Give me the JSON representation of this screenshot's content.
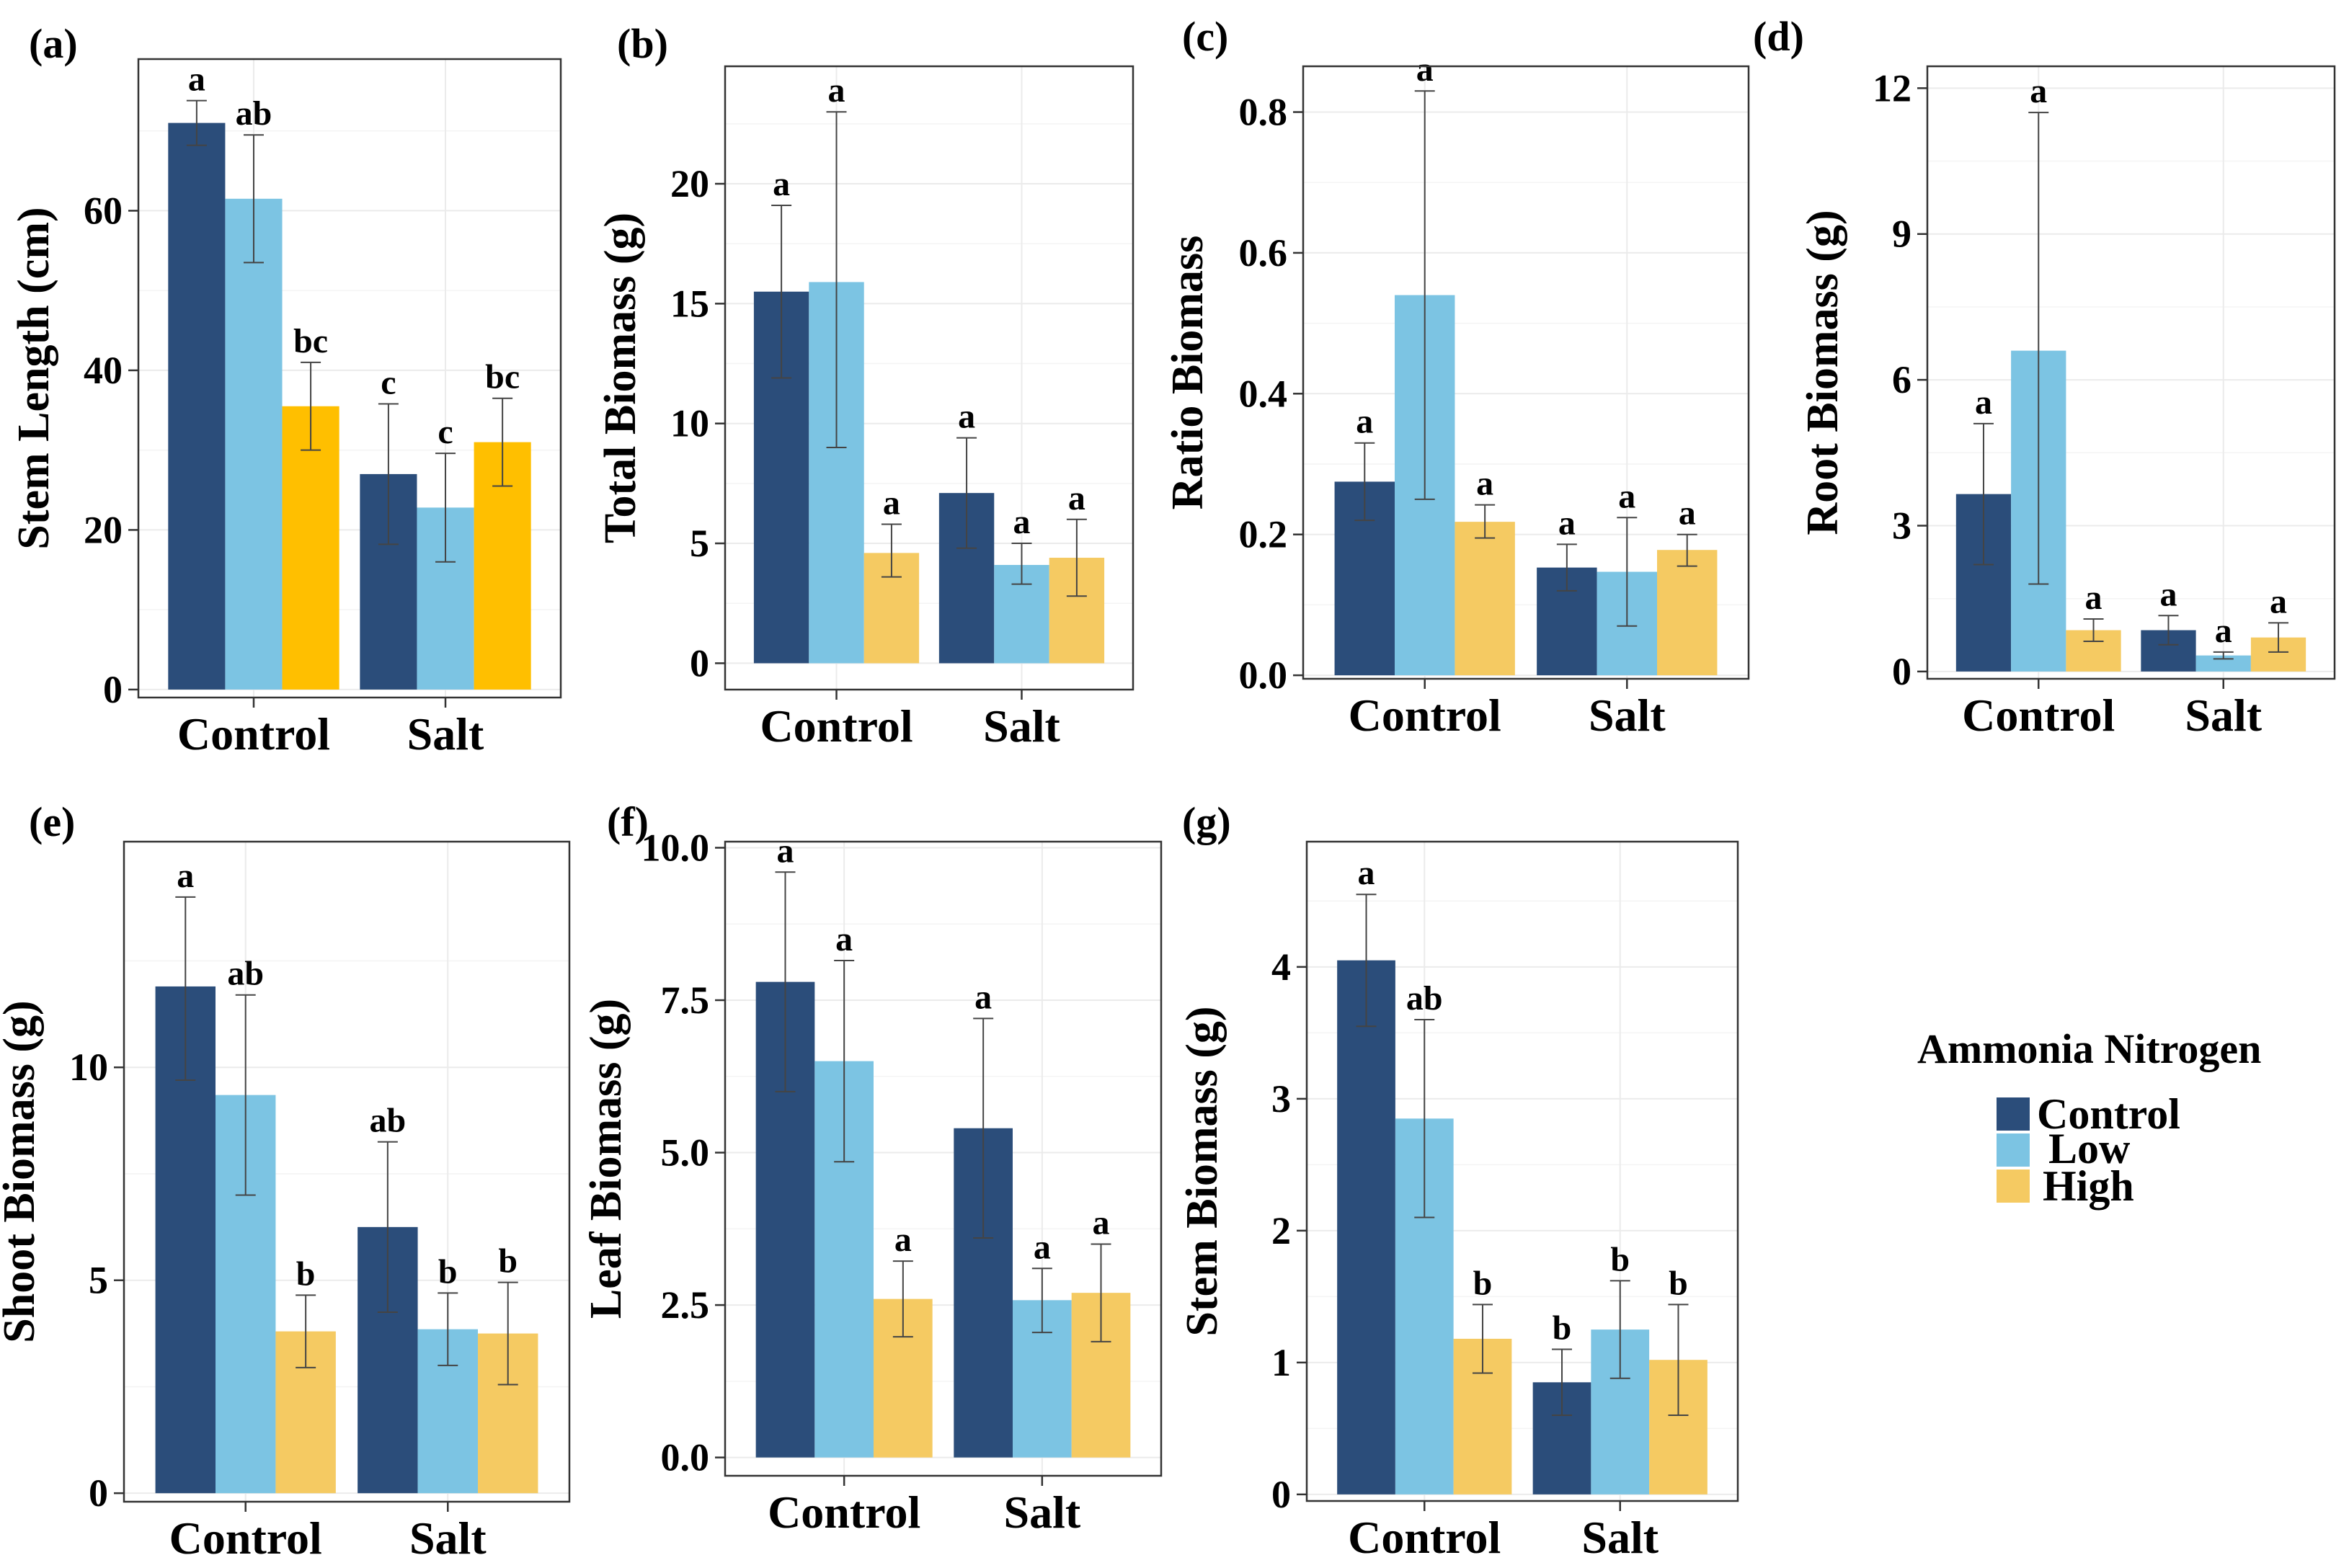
{
  "chart_data": [
    {
      "id": "a",
      "type": "bar",
      "panel_label": "(a)",
      "title": "",
      "ylabel": "Stem Length (cm)",
      "xlabel": "",
      "ylim": [
        -1,
        79
      ],
      "yticks": [
        0,
        20,
        40,
        60
      ],
      "categories": [
        "Control",
        "Salt"
      ],
      "series": [
        {
          "name": "Control",
          "values": [
            71,
            27
          ],
          "err_low": [
            68.2,
            18.2
          ],
          "err_high": [
            73.8,
            35.8
          ],
          "letters": [
            "a",
            "c"
          ]
        },
        {
          "name": "Low",
          "values": [
            61.5,
            22.8
          ],
          "err_low": [
            53.5,
            16
          ],
          "err_high": [
            69.5,
            29.6
          ],
          "letters": [
            "ab",
            "c"
          ]
        },
        {
          "name": "High",
          "values": [
            35.5,
            31
          ],
          "err_low": [
            30,
            25.5
          ],
          "err_high": [
            41,
            36.5
          ],
          "letters": [
            "bc",
            "bc"
          ]
        }
      ]
    },
    {
      "id": "b",
      "type": "bar",
      "panel_label": "(b)",
      "title": "",
      "ylabel": "Total Biomass (g)",
      "xlabel": "",
      "ylim": [
        -1.1,
        24.9
      ],
      "yticks": [
        0,
        5,
        10,
        15,
        20
      ],
      "categories": [
        "Control",
        "Salt"
      ],
      "series": [
        {
          "name": "Control",
          "values": [
            15.5,
            7.1
          ],
          "err_low": [
            11.9,
            4.8
          ],
          "err_high": [
            19.1,
            9.4
          ],
          "letters": [
            "a",
            "a"
          ]
        },
        {
          "name": "Low",
          "values": [
            15.9,
            4.1
          ],
          "err_low": [
            9.0,
            3.3
          ],
          "err_high": [
            23.0,
            5.0
          ],
          "letters": [
            "a",
            "a"
          ]
        },
        {
          "name": "High",
          "values": [
            4.6,
            4.4
          ],
          "err_low": [
            3.6,
            2.8
          ],
          "err_high": [
            5.8,
            6.0
          ],
          "letters": [
            "a",
            "a"
          ]
        }
      ]
    },
    {
      "id": "c",
      "type": "bar",
      "panel_label": "(c)",
      "title": "",
      "ylabel": "Ratio Biomass",
      "xlabel": "",
      "ylim": [
        -0.005,
        0.865
      ],
      "yticks": [
        0.0,
        0.2,
        0.4,
        0.6,
        0.8
      ],
      "ytick_labels": [
        "0.0",
        "0.2",
        "0.4",
        "0.6",
        "0.8"
      ],
      "categories": [
        "Control",
        "Salt"
      ],
      "series": [
        {
          "name": "Control",
          "values": [
            0.275,
            0.153
          ],
          "err_low": [
            0.22,
            0.12
          ],
          "err_high": [
            0.33,
            0.186
          ],
          "letters": [
            "a",
            "a"
          ]
        },
        {
          "name": "Low",
          "values": [
            0.54,
            0.147
          ],
          "err_low": [
            0.25,
            0.07
          ],
          "err_high": [
            0.83,
            0.224
          ],
          "letters": [
            "a",
            "a"
          ]
        },
        {
          "name": "High",
          "values": [
            0.218,
            0.178
          ],
          "err_low": [
            0.195,
            0.155
          ],
          "err_high": [
            0.242,
            0.2
          ],
          "letters": [
            "a",
            "a"
          ]
        }
      ]
    },
    {
      "id": "d",
      "type": "bar",
      "panel_label": "(d)",
      "title": "",
      "ylabel": "Root Biomass (g)",
      "xlabel": "",
      "ylim": [
        -0.15,
        12.45
      ],
      "yticks": [
        0,
        3,
        6,
        9,
        12
      ],
      "categories": [
        "Control",
        "Salt"
      ],
      "series": [
        {
          "name": "Control",
          "values": [
            3.65,
            0.85
          ],
          "err_low": [
            2.2,
            0.55
          ],
          "err_high": [
            5.1,
            1.15
          ],
          "letters": [
            "a",
            "a"
          ]
        },
        {
          "name": "Low",
          "values": [
            6.6,
            0.33
          ],
          "err_low": [
            1.8,
            0.26
          ],
          "err_high": [
            11.5,
            0.4
          ],
          "letters": [
            "a",
            "a"
          ]
        },
        {
          "name": "High",
          "values": [
            0.85,
            0.7
          ],
          "err_low": [
            0.62,
            0.4
          ],
          "err_high": [
            1.08,
            1.0
          ],
          "letters": [
            "a",
            "a"
          ]
        }
      ]
    },
    {
      "id": "e",
      "type": "bar",
      "panel_label": "(e)",
      "title": "",
      "ylabel": "Shoot Biomass (g)",
      "xlabel": "",
      "ylim": [
        -0.2,
        15.3
      ],
      "yticks": [
        0,
        5,
        10
      ],
      "categories": [
        "Control",
        "Salt"
      ],
      "series": [
        {
          "name": "Control",
          "values": [
            11.9,
            6.25
          ],
          "err_low": [
            9.7,
            4.25
          ],
          "err_high": [
            14.0,
            8.25
          ],
          "letters": [
            "a",
            "ab"
          ]
        },
        {
          "name": "Low",
          "values": [
            9.35,
            3.85
          ],
          "err_low": [
            7.0,
            3.0
          ],
          "err_high": [
            11.7,
            4.7
          ],
          "letters": [
            "ab",
            "b"
          ]
        },
        {
          "name": "High",
          "values": [
            3.8,
            3.75
          ],
          "err_low": [
            2.95,
            2.55
          ],
          "err_high": [
            4.65,
            4.95
          ],
          "letters": [
            "b",
            "b"
          ]
        }
      ]
    },
    {
      "id": "f",
      "type": "bar",
      "panel_label": "(f)",
      "title": "",
      "ylabel": "Leaf Biomass (g)",
      "xlabel": "",
      "ylim": [
        -0.3,
        10.1
      ],
      "yticks": [
        0,
        2.5,
        5,
        7.5,
        10
      ],
      "ytick_labels": [
        "0.0",
        "2.5",
        "5.0",
        "7.5",
        "10.0"
      ],
      "categories": [
        "Control",
        "Salt"
      ],
      "series": [
        {
          "name": "Control",
          "values": [
            7.8,
            5.4
          ],
          "err_low": [
            6.0,
            3.6
          ],
          "err_high": [
            9.6,
            7.2
          ],
          "letters": [
            "a",
            "a"
          ]
        },
        {
          "name": "Low",
          "values": [
            6.5,
            2.58
          ],
          "err_low": [
            4.85,
            2.05
          ],
          "err_high": [
            8.15,
            3.1
          ],
          "letters": [
            "a",
            "a"
          ]
        },
        {
          "name": "High",
          "values": [
            2.6,
            2.7
          ],
          "err_low": [
            1.98,
            1.9
          ],
          "err_high": [
            3.22,
            3.5
          ],
          "letters": [
            "a",
            "a"
          ]
        }
      ]
    },
    {
      "id": "g",
      "type": "bar",
      "panel_label": "(g)",
      "title": "",
      "ylabel": "Stem Biomass (g)",
      "xlabel": "",
      "ylim": [
        -0.05,
        4.95
      ],
      "yticks": [
        0,
        1,
        2,
        3,
        4
      ],
      "categories": [
        "Control",
        "Salt"
      ],
      "series": [
        {
          "name": "Control",
          "values": [
            4.05,
            0.85
          ],
          "err_low": [
            3.55,
            0.6
          ],
          "err_high": [
            4.55,
            1.1
          ],
          "letters": [
            "a",
            "b"
          ]
        },
        {
          "name": "Low",
          "values": [
            2.85,
            1.25
          ],
          "err_low": [
            2.1,
            0.88
          ],
          "err_high": [
            3.6,
            1.62
          ],
          "letters": [
            "ab",
            "b"
          ]
        },
        {
          "name": "High",
          "values": [
            1.18,
            1.02
          ],
          "err_low": [
            0.92,
            0.6
          ],
          "err_high": [
            1.44,
            1.44
          ],
          "letters": [
            "b",
            "b"
          ]
        }
      ]
    }
  ],
  "legend": {
    "title": "Ammonia Nitrogen",
    "position": "right",
    "items": [
      {
        "label": "Control",
        "color": "#2b4d7a"
      },
      {
        "label": "Low",
        "color": "#7cc4e3"
      },
      {
        "label": "High",
        "color": "#f5ca62"
      }
    ]
  },
  "colors": {
    "series": [
      "#2b4d7a",
      "#7cc4e3",
      "#f5ca62"
    ],
    "series_alt_a": [
      "#2b4d7a",
      "#7cc4e3",
      "#ffbf00"
    ]
  }
}
